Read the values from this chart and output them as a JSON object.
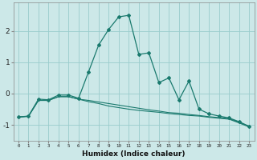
{
  "xlabel": "Humidex (Indice chaleur)",
  "ylabel": "",
  "background_color": "#cce8e8",
  "grid_color": "#99cccc",
  "line_color": "#1a7a6e",
  "xlim": [
    -0.5,
    23.5
  ],
  "ylim": [
    -1.5,
    2.9
  ],
  "yticks": [
    -1,
    0,
    1,
    2
  ],
  "xticks": [
    0,
    1,
    2,
    3,
    4,
    5,
    6,
    7,
    8,
    9,
    10,
    11,
    12,
    13,
    14,
    15,
    16,
    17,
    18,
    19,
    20,
    21,
    22,
    23
  ],
  "series1_x": [
    0,
    1,
    2,
    3,
    4,
    5,
    6,
    7,
    8,
    9,
    10,
    11,
    12,
    13,
    14,
    15,
    16,
    17,
    18,
    19,
    20,
    21,
    22,
    23
  ],
  "series1_y": [
    -0.75,
    -0.72,
    -0.18,
    -0.2,
    -0.05,
    -0.05,
    -0.15,
    0.7,
    1.55,
    2.05,
    2.45,
    2.5,
    1.25,
    1.3,
    0.35,
    0.5,
    -0.2,
    0.4,
    -0.5,
    -0.65,
    -0.72,
    -0.78,
    -0.9,
    -1.05
  ],
  "series2_x": [
    0,
    1,
    2,
    3,
    4,
    5,
    6,
    7,
    8,
    9,
    10,
    11,
    12,
    13,
    14,
    15,
    16,
    17,
    18,
    19,
    20,
    21,
    22,
    23
  ],
  "series2_y": [
    -0.75,
    -0.73,
    -0.22,
    -0.22,
    -0.1,
    -0.1,
    -0.18,
    -0.22,
    -0.27,
    -0.32,
    -0.37,
    -0.42,
    -0.47,
    -0.52,
    -0.56,
    -0.61,
    -0.63,
    -0.67,
    -0.7,
    -0.74,
    -0.77,
    -0.8,
    -0.92,
    -1.05
  ],
  "series3_x": [
    0,
    1,
    2,
    3,
    4,
    5,
    6,
    7,
    8,
    9,
    10,
    11,
    12,
    13,
    14,
    15,
    16,
    17,
    18,
    19,
    20,
    21,
    22,
    23
  ],
  "series3_y": [
    -0.75,
    -0.73,
    -0.22,
    -0.22,
    -0.1,
    -0.1,
    -0.18,
    -0.26,
    -0.32,
    -0.4,
    -0.45,
    -0.5,
    -0.54,
    -0.57,
    -0.6,
    -0.64,
    -0.67,
    -0.7,
    -0.72,
    -0.76,
    -0.79,
    -0.82,
    -0.94,
    -1.07
  ]
}
